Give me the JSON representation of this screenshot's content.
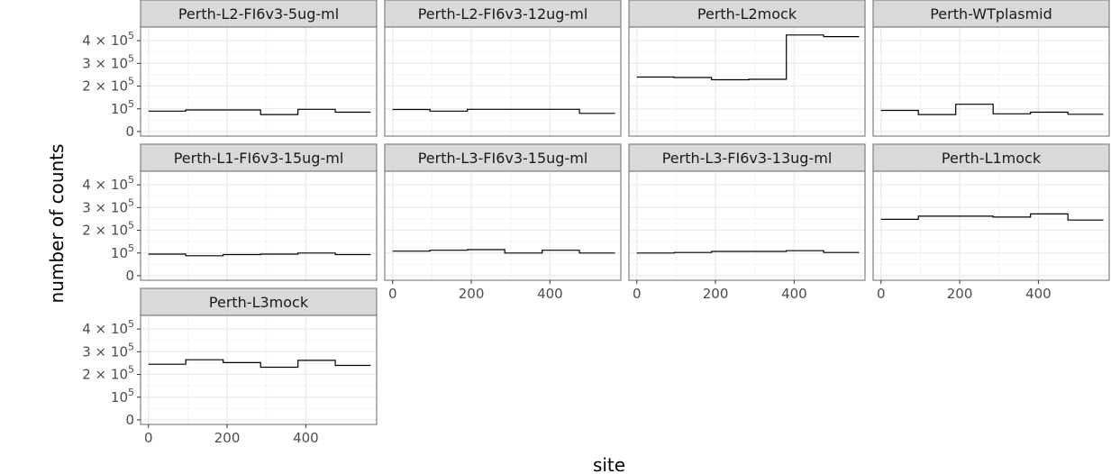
{
  "chart_data": {
    "type": "line",
    "line_style": "step",
    "facet_layout": {
      "ncol": 4
    },
    "xlabel": "site",
    "ylabel": "number of counts",
    "xlim": [
      -20,
      580
    ],
    "ylim": [
      -20000,
      460000
    ],
    "x_ticks": [
      0,
      200,
      400
    ],
    "x_tick_labels": [
      "0",
      "200",
      "400"
    ],
    "y_ticks": [
      0,
      100000,
      200000,
      300000,
      400000
    ],
    "y_tick_labels": [
      {
        "mantissa": "0",
        "base": "",
        "exp": ""
      },
      {
        "mantissa": "",
        "base": "10",
        "exp": "5"
      },
      {
        "mantissa": "2 ×",
        "base": "10",
        "exp": "5"
      },
      {
        "mantissa": "3 ×",
        "base": "10",
        "exp": "5"
      },
      {
        "mantissa": "4 ×",
        "base": "10",
        "exp": "5"
      }
    ],
    "grid": true,
    "colors": {
      "line": "#000000",
      "strip_fill": "#d9d9d9",
      "panel_border": "#808080",
      "grid_major": "#ebebeb",
      "grid_minor": "#f5f5f5"
    },
    "panels": [
      {
        "name": "Perth-L2-FI6v3-5ug-ml",
        "x": [
          0,
          95,
          190,
          285,
          380,
          475,
          565
        ],
        "y": [
          90000,
          95000,
          95000,
          75000,
          98000,
          85000,
          85000
        ]
      },
      {
        "name": "Perth-L2-FI6v3-12ug-ml",
        "x": [
          0,
          95,
          190,
          285,
          380,
          475,
          565
        ],
        "y": [
          97000,
          90000,
          98000,
          98000,
          98000,
          80000,
          80000
        ]
      },
      {
        "name": "Perth-L2mock",
        "x": [
          0,
          95,
          190,
          285,
          380,
          475,
          565
        ],
        "y": [
          240000,
          238000,
          228000,
          230000,
          425000,
          418000,
          418000
        ]
      },
      {
        "name": "Perth-WTplasmid",
        "x": [
          0,
          95,
          190,
          285,
          380,
          475,
          565
        ],
        "y": [
          93000,
          75000,
          120000,
          78000,
          85000,
          76000,
          76000
        ]
      },
      {
        "name": "Perth-L1-FI6v3-15ug-ml",
        "x": [
          0,
          95,
          190,
          285,
          380,
          475,
          565
        ],
        "y": [
          95000,
          88000,
          93000,
          95000,
          100000,
          93000,
          93000
        ]
      },
      {
        "name": "Perth-L3-FI6v3-15ug-ml",
        "x": [
          0,
          95,
          190,
          285,
          380,
          475,
          565
        ],
        "y": [
          108000,
          112000,
          115000,
          100000,
          112000,
          100000,
          100000
        ]
      },
      {
        "name": "Perth-L3-FI6v3-13ug-ml",
        "x": [
          0,
          95,
          190,
          285,
          380,
          475,
          565
        ],
        "y": [
          100000,
          102000,
          107000,
          107000,
          110000,
          102000,
          102000
        ]
      },
      {
        "name": "Perth-L1mock",
        "x": [
          0,
          95,
          190,
          285,
          380,
          475,
          565
        ],
        "y": [
          248000,
          262000,
          262000,
          258000,
          272000,
          245000,
          245000
        ]
      },
      {
        "name": "Perth-L3mock",
        "x": [
          0,
          95,
          190,
          285,
          380,
          475,
          565
        ],
        "y": [
          245000,
          265000,
          252000,
          232000,
          262000,
          240000,
          240000
        ]
      }
    ]
  }
}
